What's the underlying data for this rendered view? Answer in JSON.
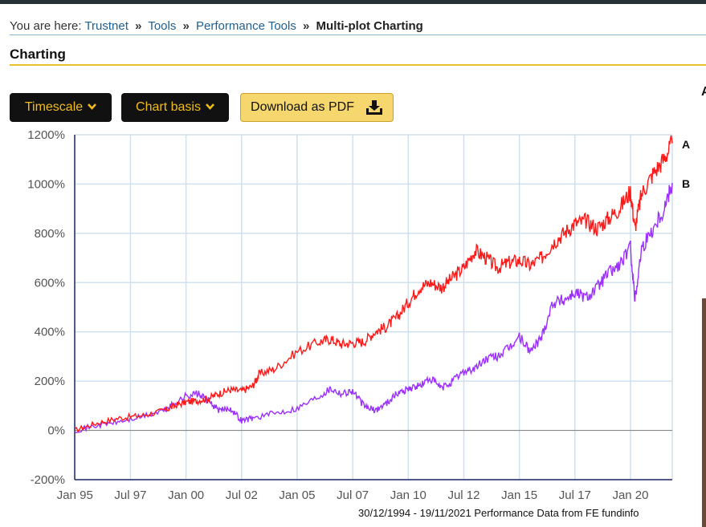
{
  "breadcrumb": {
    "prefix": "You are here:",
    "items": [
      "Trustnet",
      "Tools",
      "Performance Tools"
    ],
    "separator": "»",
    "current": "Multi-plot Charting"
  },
  "section_title": "Charting",
  "buttons": {
    "timescale": "Timescale",
    "chart_basis": "Chart basis",
    "download_pdf": "Download as PDF"
  },
  "side_fragment": "A",
  "footer_note": "30/12/1994 - 19/11/2021 Performance Data from FE fundinfo",
  "colors": {
    "series_a": "#ff1a1a",
    "series_b": "#9b30ff",
    "accent": "#f2bd16",
    "grid": "#cfe0ee"
  },
  "chart_data": {
    "type": "line",
    "title": "",
    "xlabel": "",
    "ylabel": "",
    "ylim": [
      -200,
      1200
    ],
    "yticks": [
      -200,
      0,
      200,
      400,
      600,
      800,
      1000,
      1200
    ],
    "ytick_labels": [
      "-200%",
      "0%",
      "200%",
      "400%",
      "600%",
      "800%",
      "1000%",
      "1200%"
    ],
    "xrange": [
      1994.99,
      2021.88
    ],
    "xticks": [
      1995.0,
      1997.5,
      2000.0,
      2002.5,
      2005.0,
      2007.5,
      2010.0,
      2012.5,
      2015.0,
      2017.5,
      2020.0
    ],
    "xtick_labels": [
      "Jan 95",
      "Jul 97",
      "Jan 00",
      "Jul 02",
      "Jan 05",
      "Jul 07",
      "Jan 10",
      "Jul 12",
      "Jan 15",
      "Jul 17",
      "Jan 20"
    ],
    "grid": true,
    "series": [
      {
        "name": "A",
        "x": [
          1995.0,
          1996.0,
          1997.0,
          1998.0,
          1999.0,
          1999.5,
          2000.0,
          2000.5,
          2001.0,
          2001.5,
          2002.0,
          2002.5,
          2003.0,
          2003.3,
          2004.0,
          2005.0,
          2006.0,
          2006.5,
          2007.0,
          2007.5,
          2008.0,
          2008.5,
          2009.0,
          2009.5,
          2010.0,
          2010.5,
          2011.0,
          2011.5,
          2012.0,
          2012.5,
          2013.0,
          2013.5,
          2014.0,
          2014.5,
          2015.0,
          2015.5,
          2016.0,
          2016.5,
          2017.0,
          2017.5,
          2018.0,
          2018.5,
          2019.0,
          2019.5,
          2020.0,
          2020.2,
          2020.5,
          2021.0,
          2021.5,
          2021.88
        ],
        "y": [
          0,
          30,
          50,
          60,
          80,
          100,
          115,
          120,
          130,
          150,
          165,
          160,
          180,
          230,
          250,
          320,
          360,
          370,
          350,
          355,
          360,
          400,
          420,
          460,
          520,
          580,
          600,
          580,
          620,
          660,
          730,
          700,
          660,
          680,
          690,
          670,
          700,
          760,
          800,
          840,
          850,
          820,
          860,
          900,
          970,
          820,
          960,
          1040,
          1100,
          1165
        ]
      },
      {
        "name": "B",
        "x": [
          1995.0,
          1996.0,
          1997.0,
          1998.0,
          1999.0,
          1999.5,
          2000.0,
          2000.5,
          2001.0,
          2001.5,
          2002.0,
          2002.5,
          2003.0,
          2004.0,
          2005.0,
          2006.0,
          2006.5,
          2007.0,
          2007.5,
          2008.0,
          2008.5,
          2009.0,
          2009.5,
          2010.0,
          2010.5,
          2011.0,
          2011.5,
          2012.0,
          2012.5,
          2013.0,
          2013.5,
          2014.0,
          2014.5,
          2015.0,
          2015.5,
          2016.0,
          2016.5,
          2017.0,
          2017.5,
          2018.0,
          2018.5,
          2019.0,
          2019.5,
          2020.0,
          2020.2,
          2020.5,
          2021.0,
          2021.5,
          2021.88
        ],
        "y": [
          0,
          20,
          35,
          55,
          80,
          110,
          140,
          150,
          120,
          80,
          90,
          40,
          50,
          70,
          90,
          140,
          170,
          150,
          160,
          100,
          80,
          110,
          150,
          170,
          180,
          210,
          170,
          200,
          240,
          250,
          290,
          300,
          330,
          380,
          320,
          380,
          520,
          530,
          560,
          540,
          580,
          640,
          670,
          740,
          530,
          740,
          820,
          900,
          1005
        ]
      }
    ]
  }
}
